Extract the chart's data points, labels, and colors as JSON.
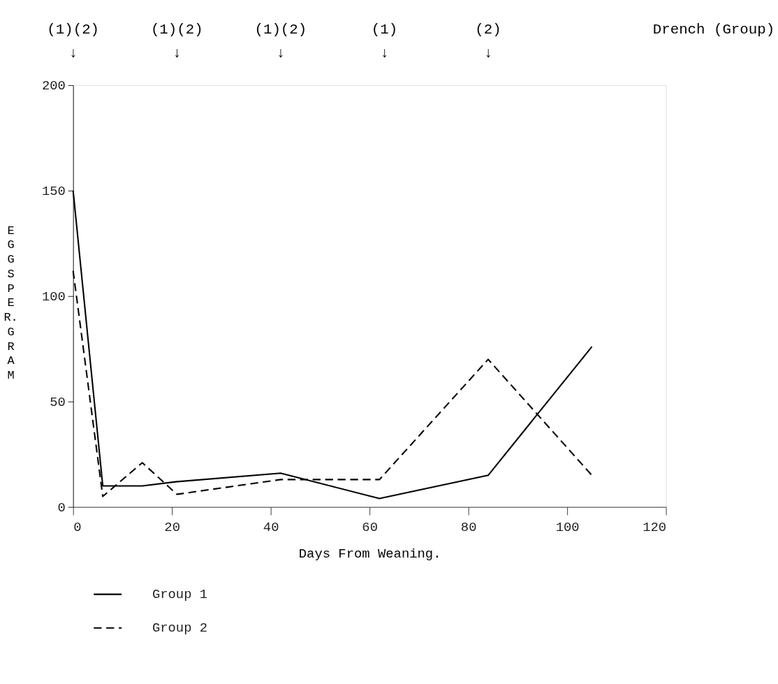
{
  "chart_data": {
    "type": "line",
    "xlabel": "Days From Weaning.",
    "ylabel": "EGGS PER. GRAM",
    "series": [
      {
        "name": "Group 1",
        "color": "#000000",
        "line_style": "solid",
        "x": [
          0,
          6,
          14,
          21,
          42,
          62,
          84,
          105
        ],
        "values": [
          150,
          10,
          10,
          12,
          16,
          4,
          15,
          76
        ]
      },
      {
        "name": "Group 2",
        "color": "#000000",
        "line_style": "dashed",
        "x": [
          0,
          6,
          14,
          21,
          42,
          62,
          84,
          105
        ],
        "values": [
          112,
          5,
          21,
          6,
          13,
          13,
          70,
          15
        ]
      }
    ],
    "xlim": [
      0,
      120
    ],
    "xticks": [
      0,
      20,
      40,
      60,
      80,
      100,
      120
    ],
    "ylim": [
      0,
      200
    ],
    "yticks": [
      0,
      50,
      100,
      150,
      200
    ],
    "grid": false,
    "legend": "bottom left",
    "marker": "none",
    "annotations": [
      "(1)(2)\n↓",
      "(1)(2)\n↓",
      "(1)(2)\n↓",
      "(1)\n↓",
      "(2)\n↓",
      "Drench (Group)"
    ]
  }
}
